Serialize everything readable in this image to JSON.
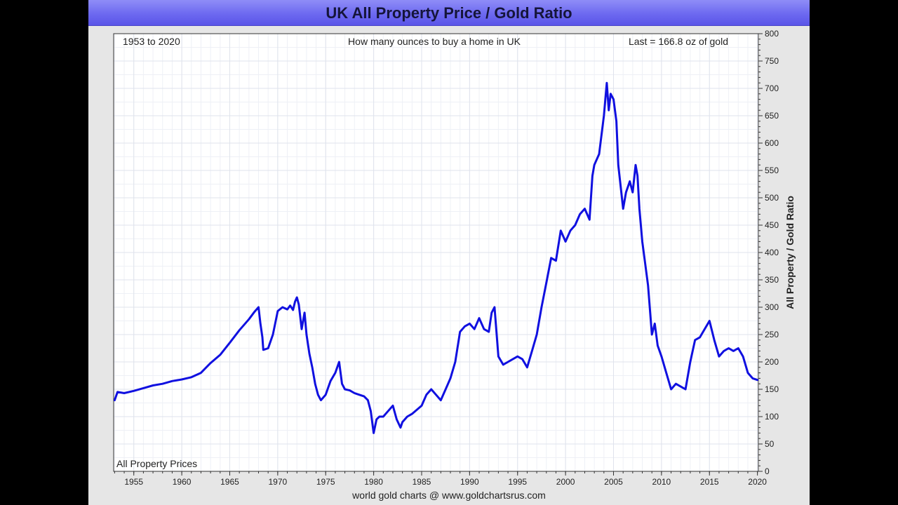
{
  "chart_data": {
    "type": "line",
    "title": "UK All Property Price / Gold Ratio",
    "annotations": {
      "left": "1953 to 2020",
      "center": "How many ounces to buy a home in UK",
      "right": "Last = 166.8 oz of gold",
      "bottom_left": "All Property Prices"
    },
    "ylabel": "All Property / Gold Ratio",
    "xlabel": "",
    "xlim": [
      1952.9,
      2020.1
    ],
    "ylim": [
      0,
      800
    ],
    "x_ticks": [
      1955,
      1960,
      1965,
      1970,
      1975,
      1980,
      1985,
      1990,
      1995,
      2000,
      2005,
      2010,
      2015,
      2020
    ],
    "y_ticks": [
      0,
      50,
      100,
      150,
      200,
      250,
      300,
      350,
      400,
      450,
      500,
      550,
      600,
      650,
      700,
      750,
      800
    ],
    "y_axis_position": "right",
    "grid": true,
    "line_color": "#1010e0",
    "series": [
      {
        "x": [
          1953.0,
          1953.3,
          1954.0,
          1955.0,
          1956.0,
          1957.0,
          1958.0,
          1959.0,
          1960.0,
          1961.0,
          1962.0,
          1963.0,
          1964.0,
          1965.0,
          1966.0,
          1967.0,
          1967.6,
          1968.0,
          1968.2,
          1968.4,
          1968.5,
          1969.0,
          1969.5,
          1970.0,
          1970.5,
          1971.0,
          1971.3,
          1971.6,
          1971.8,
          1972.0,
          1972.2,
          1972.5,
          1972.8,
          1973.0,
          1973.3,
          1973.6,
          1973.9,
          1974.2,
          1974.5,
          1975.0,
          1975.5,
          1976.0,
          1976.4,
          1976.7,
          1977.0,
          1977.5,
          1978.0,
          1978.5,
          1979.0,
          1979.4,
          1979.7,
          1980.0,
          1980.3,
          1980.6,
          1981.0,
          1981.5,
          1982.0,
          1982.4,
          1982.8,
          1983.0,
          1983.5,
          1984.0,
          1985.0,
          1985.5,
          1986.0,
          1986.5,
          1987.0,
          1987.5,
          1988.0,
          1988.5,
          1989.0,
          1989.5,
          1990.0,
          1990.5,
          1991.0,
          1991.5,
          1992.0,
          1992.3,
          1992.6,
          1993.0,
          1993.5,
          1994.0,
          1994.5,
          1995.0,
          1995.5,
          1996.0,
          1996.5,
          1997.0,
          1997.5,
          1998.0,
          1998.5,
          1999.0,
          1999.5,
          2000.0,
          2000.5,
          2001.0,
          2001.5,
          2002.0,
          2002.5,
          2002.8,
          2003.0,
          2003.5,
          2004.0,
          2004.3,
          2004.5,
          2004.7,
          2005.0,
          2005.3,
          2005.5,
          2006.0,
          2006.3,
          2006.7,
          2007.0,
          2007.3,
          2007.5,
          2007.7,
          2008.0,
          2008.3,
          2008.6,
          2009.0,
          2009.3,
          2009.6,
          2010.0,
          2010.5,
          2011.0,
          2011.5,
          2012.0,
          2012.5,
          2013.0,
          2013.5,
          2014.0,
          2014.5,
          2015.0,
          2015.5,
          2016.0,
          2016.5,
          2017.0,
          2017.5,
          2018.0,
          2018.5,
          2019.0,
          2019.5,
          2020.0
        ],
        "y": [
          130,
          145,
          143,
          147,
          152,
          157,
          160,
          165,
          168,
          172,
          180,
          198,
          213,
          235,
          258,
          278,
          292,
          300,
          270,
          245,
          222,
          225,
          250,
          293,
          300,
          296,
          303,
          295,
          310,
          318,
          305,
          260,
          290,
          250,
          215,
          190,
          160,
          140,
          130,
          140,
          165,
          180,
          200,
          160,
          150,
          148,
          143,
          140,
          137,
          130,
          110,
          70,
          95,
          100,
          100,
          110,
          120,
          95,
          80,
          90,
          100,
          105,
          120,
          140,
          150,
          140,
          130,
          150,
          170,
          200,
          255,
          265,
          270,
          260,
          280,
          260,
          255,
          290,
          300,
          210,
          195,
          200,
          205,
          210,
          205,
          190,
          220,
          250,
          300,
          345,
          390,
          385,
          440,
          420,
          440,
          450,
          470,
          480,
          460,
          540,
          560,
          580,
          650,
          710,
          660,
          690,
          680,
          640,
          560,
          480,
          510,
          530,
          510,
          560,
          540,
          480,
          420,
          380,
          340,
          250,
          270,
          230,
          210,
          180,
          150,
          160,
          155,
          150,
          200,
          240,
          245,
          260,
          275,
          240,
          210,
          220,
          225,
          220,
          225,
          210,
          180,
          170,
          167
        ]
      }
    ]
  },
  "footer": {
    "credit": "world gold charts @ www.goldchartsrus.com"
  }
}
